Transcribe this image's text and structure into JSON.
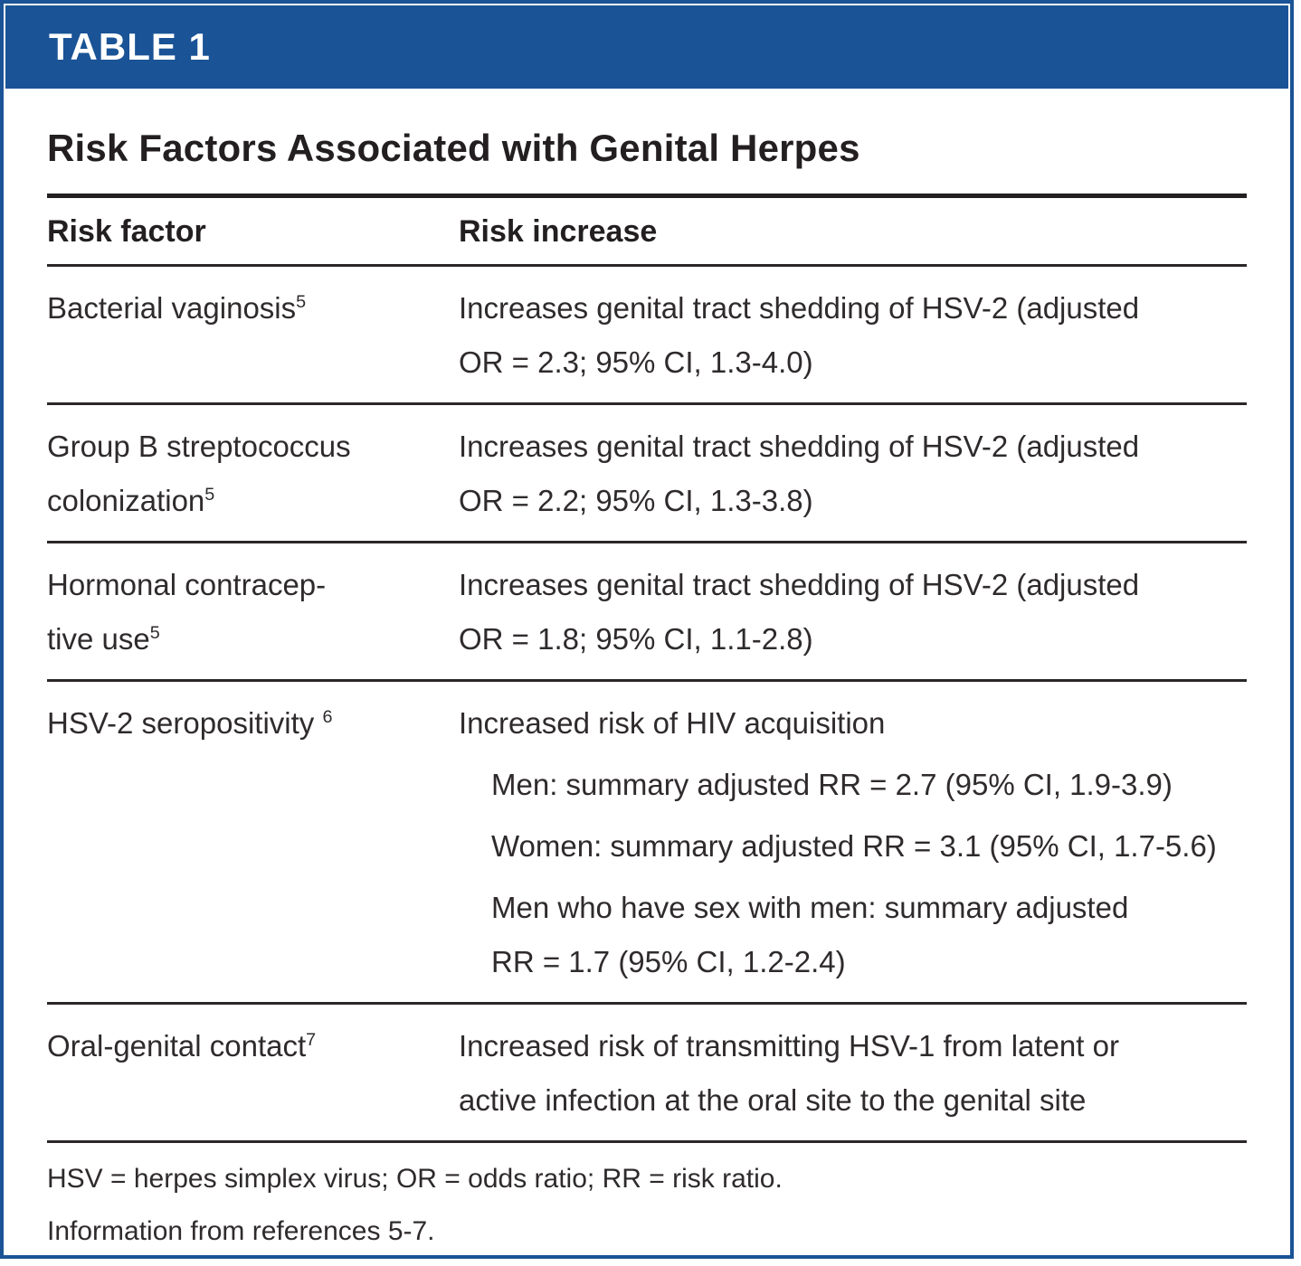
{
  "header": {
    "tag": "TABLE 1"
  },
  "table": {
    "title": "Risk Factors Associated with Genital Herpes",
    "columns": [
      "Risk factor",
      "Risk increase"
    ],
    "rows": [
      {
        "factor_line1": "Bacterial vaginosis",
        "factor_sup": "5",
        "increase_line1": "Increases genital tract shedding of HSV-2 (adjusted",
        "increase_line2": "OR = 2.3; 95% CI, 1.3-4.0)"
      },
      {
        "factor_line1": "Group B streptococcus",
        "factor_line2": "colonization",
        "factor_sup": "5",
        "increase_line1": "Increases genital tract shedding of HSV-2 (adjusted",
        "increase_line2": "OR = 2.2; 95% CI, 1.3-3.8)"
      },
      {
        "factor_line1": "Hormonal contracep-",
        "factor_line2": "tive use",
        "factor_sup": "5",
        "increase_line1": "Increases genital tract shedding of HSV-2 (adjusted",
        "increase_line2": "OR = 1.8; 95% CI, 1.1-2.8)"
      },
      {
        "factor_line1": "HSV-2 seropositivity ",
        "factor_sup": "6",
        "increase_line1": "Increased risk of HIV acquisition",
        "sub_items": [
          "Men: summary adjusted RR = 2.7 (95% CI, 1.9-3.9)",
          "Women: summary adjusted RR = 3.1 (95% CI, 1.7-5.6)"
        ],
        "sub_item3_line1": "Men who have sex with men: summary adjusted",
        "sub_item3_line2": "RR = 1.7 (95% CI, 1.2-2.4)"
      },
      {
        "factor_line1": "Oral-genital contact",
        "factor_sup": "7",
        "increase_line1": "Increased risk of transmitting HSV-1 from latent or",
        "increase_line2": "active infection at the oral site to the genital site"
      }
    ],
    "footnotes": [
      "HSV = herpes simplex virus; OR = odds ratio; RR = risk ratio.",
      "Information from references 5-7."
    ]
  },
  "colors": {
    "header_blue": "#1A5396",
    "text_dark": "#231F20"
  }
}
